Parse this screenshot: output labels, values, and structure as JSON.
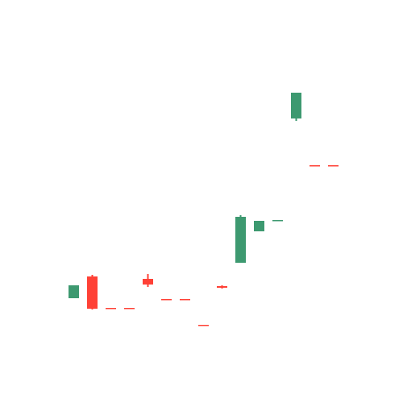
{
  "chart_data": {
    "type": "candlestick",
    "title": "",
    "xlabel": "",
    "ylabel": "",
    "axes_visible": false,
    "grid": false,
    "legend": "none",
    "ylim": [
      0,
      500
    ],
    "colors": {
      "up": "#3d9970",
      "down": "#ff4136"
    },
    "candles": [
      {
        "open": 130,
        "high": 146,
        "low": 130,
        "close": 146
      },
      {
        "open": 157,
        "high": 159,
        "low": 116,
        "close": 117
      },
      {
        "open": 118,
        "high": 118,
        "low": 117,
        "close": 117
      },
      {
        "open": 118,
        "high": 118,
        "low": 117,
        "close": 117
      },
      {
        "open": 154,
        "high": 160,
        "low": 144,
        "close": 147
      },
      {
        "open": 129,
        "high": 129,
        "low": 128,
        "close": 128
      },
      {
        "open": 129,
        "high": 129,
        "low": 128,
        "close": 128
      },
      {
        "open": 97,
        "high": 97,
        "low": 96,
        "close": 96
      },
      {
        "open": 145,
        "high": 146,
        "low": 142,
        "close": 143
      },
      {
        "open": 174,
        "high": 233,
        "low": 174,
        "close": 231
      },
      {
        "open": 213,
        "high": 226,
        "low": 213,
        "close": 226
      },
      {
        "open": 226,
        "high": 227,
        "low": 226,
        "close": 227
      },
      {
        "open": 353,
        "high": 385,
        "low": 350,
        "close": 385
      },
      {
        "open": 295,
        "high": 295,
        "low": 294,
        "close": 294
      },
      {
        "open": 295,
        "high": 295,
        "low": 294,
        "close": 294
      }
    ]
  }
}
